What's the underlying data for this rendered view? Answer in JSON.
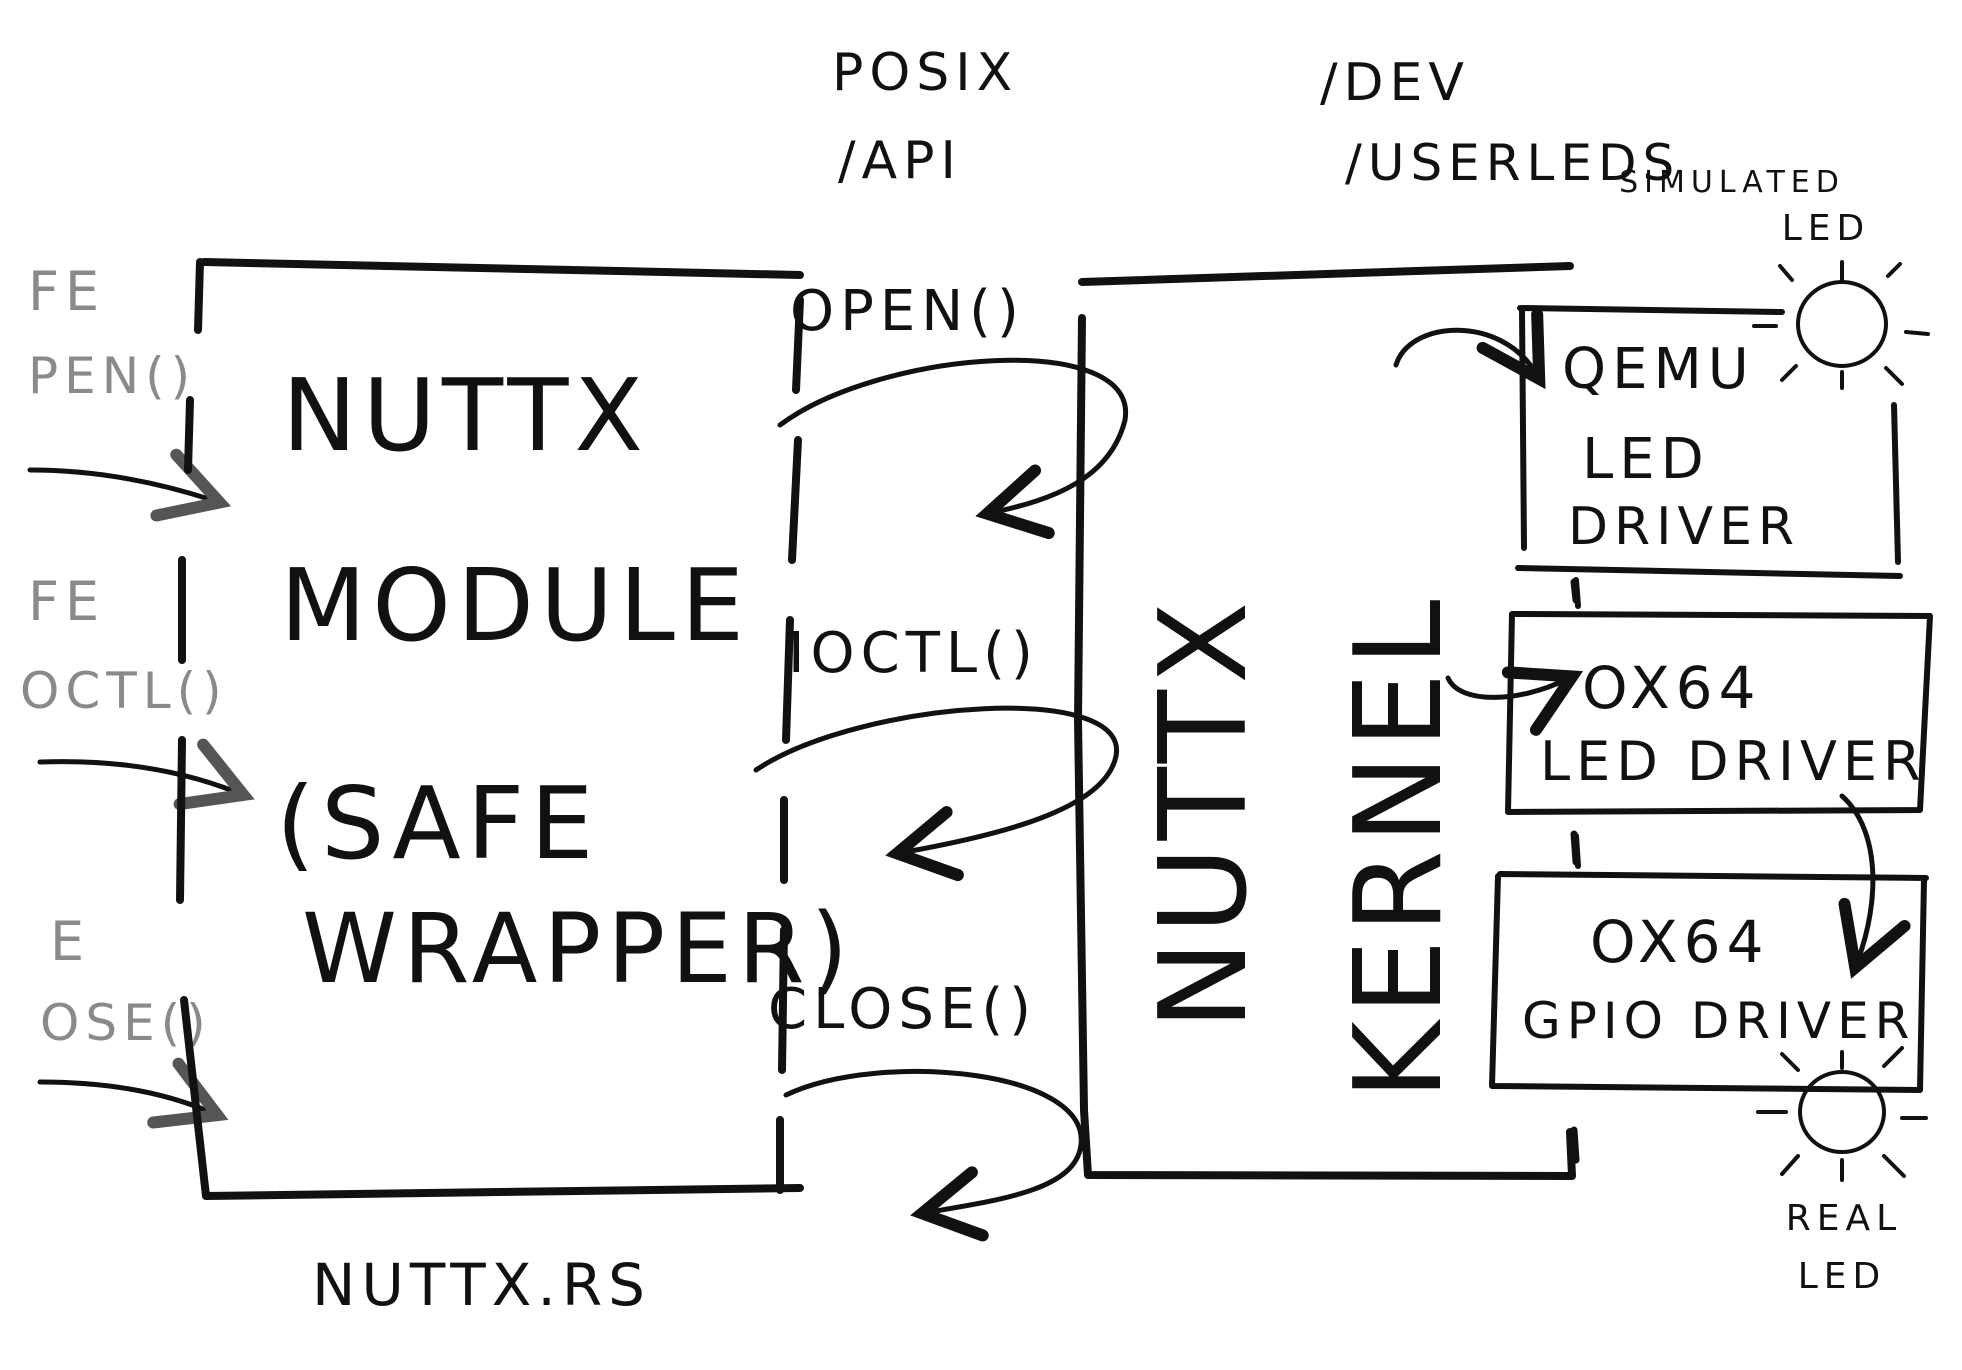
{
  "labels": {
    "posix": "POSIX",
    "api": "/API",
    "dev": "/DEV",
    "userleds": "/USERLEDS",
    "simulated": "SIMULATED",
    "led_top": "LED",
    "real": "REAL",
    "led_bottom": "LED",
    "nuttx_rs": "NUTTX.RS"
  },
  "left_calls": [
    "FE",
    "PEN()",
    "FE",
    "OCTL()",
    "E",
    "OSE()"
  ],
  "module": {
    "line1": "NUTTX",
    "line2": "MODULE",
    "line3": "(SAFE",
    "line4": "WRAPPER)"
  },
  "api_calls": {
    "open": "OPEN()",
    "ioctl": "IOCTL()",
    "close": "CLOSE()"
  },
  "kernel": {
    "col1": "NUTTX",
    "col2": "KERNEL"
  },
  "drivers": {
    "qemu": [
      "QEMU",
      "LED",
      "DRIVER"
    ],
    "ox64_led": [
      "OX64",
      "LED DRIVER"
    ],
    "ox64_gpio": [
      "OX64",
      "GPIO DRIVER"
    ]
  }
}
